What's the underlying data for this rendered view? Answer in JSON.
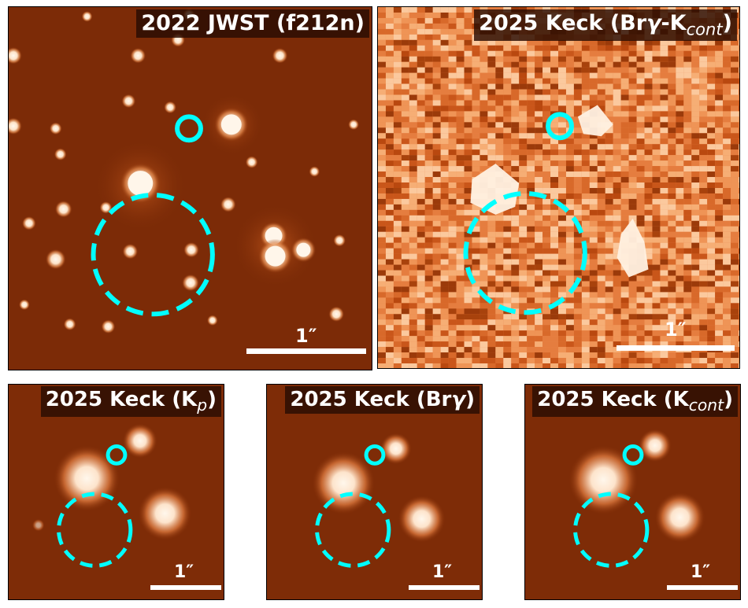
{
  "panels": {
    "jwst_2022": {
      "title_main": "2022 JWST (f212n)",
      "scale_label": "1″"
    },
    "keck_diff_2025": {
      "title_prefix": "2025 Keck (Br",
      "title_greek": "γ",
      "title_mid": "-K",
      "title_sub": "cont",
      "title_suffix": ")",
      "scale_label": "1″"
    },
    "keck_kp_2025": {
      "title_prefix": "2025 Keck (K",
      "title_sub": "p",
      "title_suffix": ")",
      "scale_label": "1″"
    },
    "keck_brg_2025": {
      "title_prefix": "2025 Keck (Br",
      "title_greek": "γ",
      "title_suffix": ")",
      "scale_label": "1″"
    },
    "keck_kcont_2025": {
      "title_prefix": "2025 Keck (K",
      "title_sub": "cont",
      "title_suffix": ")",
      "scale_label": "1″"
    }
  },
  "colors": {
    "background_dark": "#7a2a06",
    "star_core": "#fff6ea",
    "marker": "#00ffff",
    "scale_bar": "#ffffff"
  }
}
